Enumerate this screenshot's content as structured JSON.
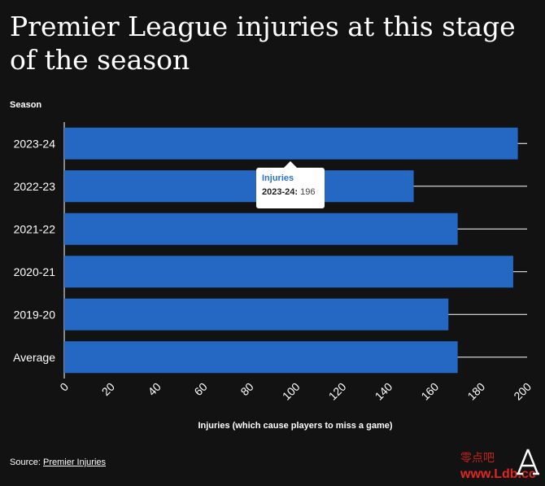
{
  "header": {
    "title": "Premier League injuries at this stage of the season"
  },
  "chart_data": {
    "type": "bar",
    "orientation": "horizontal",
    "categories": [
      "2023-24",
      "2022-23",
      "2021-22",
      "2020-21",
      "2019-20",
      "Average"
    ],
    "series": [
      {
        "name": "Injuries",
        "values": [
          196,
          151,
          170,
          194,
          166,
          170
        ]
      }
    ],
    "ylabel": "Season",
    "xlabel": "Injuries (which cause players to miss a game)",
    "xlim": [
      0,
      200
    ],
    "xticks": [
      0,
      20,
      40,
      60,
      80,
      100,
      120,
      140,
      160,
      180,
      200
    ],
    "grid": true,
    "legend": "none",
    "bar_color": "#2468c4"
  },
  "tooltip": {
    "series": "Injuries",
    "category": "2023-24:",
    "value": "196"
  },
  "footer": {
    "source_prefix": "Source:",
    "source_link": "Premier Injuries"
  },
  "branding": {
    "logo_icon": "athletic-logo-icon",
    "watermark": "www.Ldb.cc",
    "watermark_cn": "零点吧"
  }
}
